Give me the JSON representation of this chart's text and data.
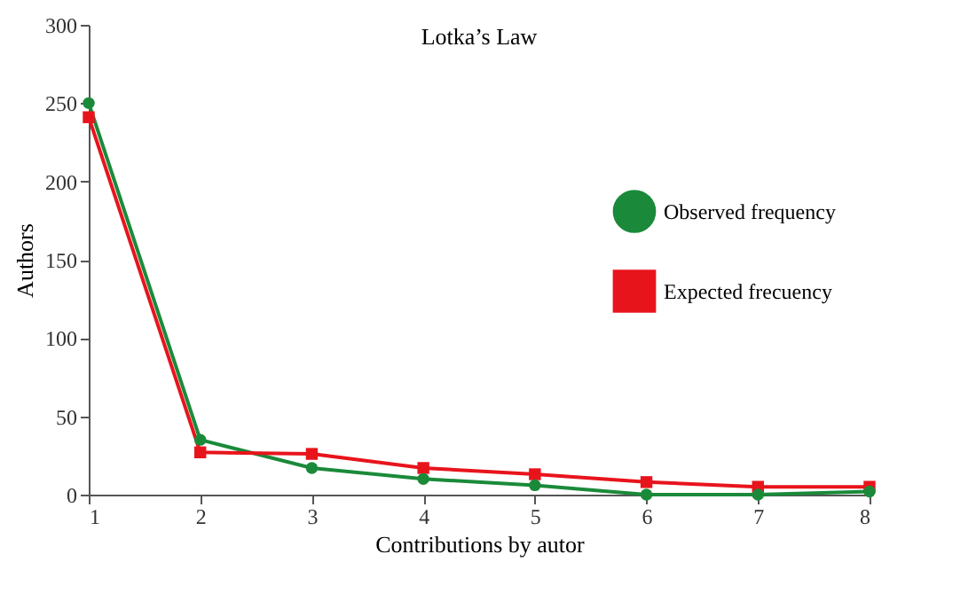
{
  "chart_data": {
    "type": "line",
    "title": "Lotka’s Law",
    "xlabel": "Contributions by autor",
    "ylabel": "Authors",
    "x": [
      1,
      2,
      3,
      4,
      5,
      6,
      7,
      8
    ],
    "series": [
      {
        "name": "Observed frequency",
        "color": "#1a8a3a",
        "marker": "circle",
        "values": [
          250,
          35,
          17,
          10,
          6,
          0,
          0,
          2
        ]
      },
      {
        "name": "Expected frecuency",
        "color": "#e8141c",
        "marker": "square",
        "values": [
          241,
          27,
          26,
          17,
          13,
          8,
          5,
          5
        ]
      }
    ],
    "xlim": [
      1,
      8
    ],
    "xticks": [
      1,
      2,
      3,
      4,
      5,
      6,
      7,
      8
    ],
    "ylim": [
      0,
      300
    ],
    "yticks": [
      0,
      50,
      100,
      150,
      200,
      250,
      300
    ],
    "grid": false,
    "legend": "right",
    "line_style": "solid"
  }
}
